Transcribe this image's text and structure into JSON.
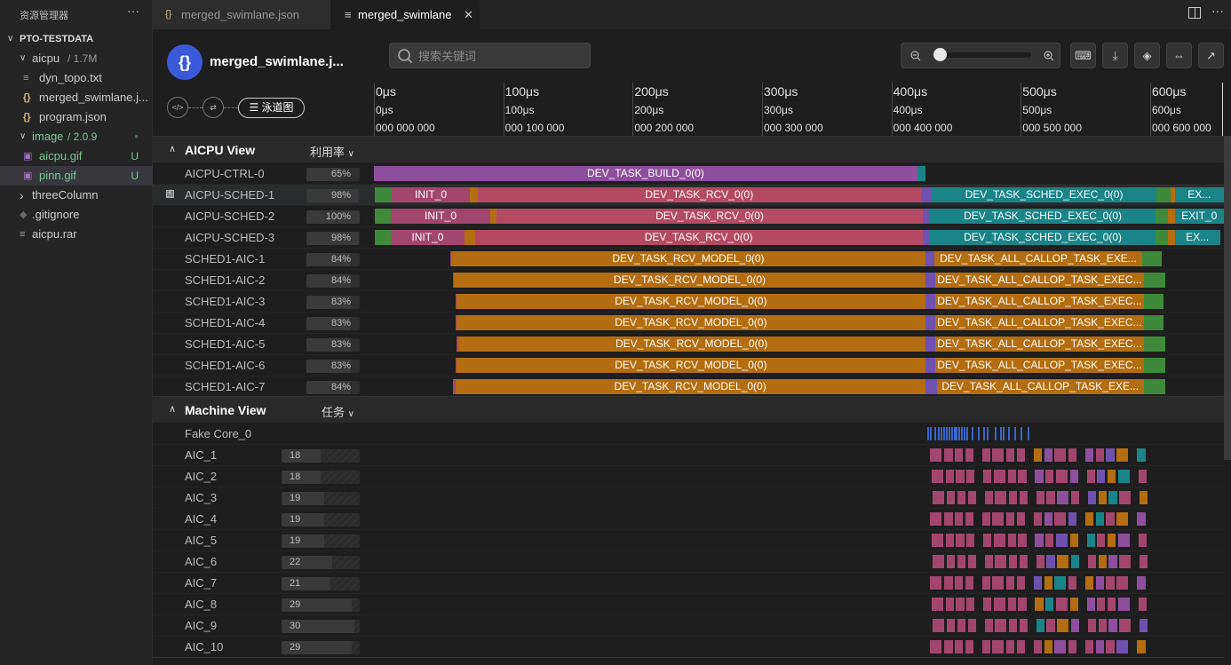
{
  "sidebar": {
    "title": "资源管理器",
    "more": "···",
    "root": "PTO-TESTDATA",
    "items": [
      {
        "label": "aicpu",
        "sub": "1.7M",
        "indent": 1,
        "chev": "v",
        "icon": "folder-icon"
      },
      {
        "label": "dyn_topo.txt",
        "indent": 2,
        "icon": "text-file-icon"
      },
      {
        "label": "merged_swimlane.j...",
        "indent": 2,
        "icon": "json-file-icon",
        "glyph": "{}"
      },
      {
        "label": "program.json",
        "indent": 2,
        "icon": "json-file-icon",
        "glyph": "{}"
      },
      {
        "label": "image",
        "sub": "2.0.9",
        "indent": 1,
        "chev": "v",
        "icon": "folder-icon",
        "color": "#73c991",
        "dot": true
      },
      {
        "label": "aicpu.gif",
        "indent": 2,
        "icon": "image-file-icon",
        "color": "#73c991",
        "badge": "U"
      },
      {
        "label": "pinn.gif",
        "indent": 2,
        "icon": "image-file-icon",
        "color": "#73c991",
        "badge": "U",
        "selected": true
      },
      {
        "label": "threeColumn",
        "indent": 1,
        "chev": ">",
        "icon": "folder-icon"
      },
      {
        "label": ".gitignore",
        "indent": 1,
        "icon": "git-file-icon"
      },
      {
        "label": "aicpu.rar",
        "indent": 1,
        "icon": "archive-file-icon"
      }
    ]
  },
  "tabs": [
    {
      "label": "merged_swimlane.json",
      "glyph": "{}"
    },
    {
      "label": "merged_swimlane",
      "glyph": "≡",
      "close": "✕"
    }
  ],
  "header": {
    "logo": "{}",
    "file_name": "merged_swimlane.j...",
    "search_placeholder": "搜索关键词",
    "zoom_level": 0.0,
    "swimlane_button": "泳道图"
  },
  "ruler": {
    "ticks": [
      {
        "t": 0,
        "a": "0μs",
        "b": "0μs",
        "c": "000 000 000"
      },
      {
        "t": 100,
        "a": "100μs",
        "b": "100μs",
        "c": "000 100 000"
      },
      {
        "t": 200,
        "a": "200μs",
        "b": "200μs",
        "c": "000 200 000"
      },
      {
        "t": 300,
        "a": "300μs",
        "b": "300μs",
        "c": "000 300 000"
      },
      {
        "t": 400,
        "a": "400μs",
        "b": "400μs",
        "c": "000 400 000"
      },
      {
        "t": 500,
        "a": "500μs",
        "b": "500μs",
        "c": "000 500 000"
      },
      {
        "t": 600,
        "a": "600μs",
        "b": "600μs",
        "c": "000 600 000"
      }
    ],
    "max_us": 657
  },
  "colors": {
    "purple": "#8e4f9e",
    "teal": "#1a8488",
    "green": "#3e8a3a",
    "pink": "#a3466e",
    "rose": "#b44a63",
    "orange": "#b46d10",
    "violet": "#6f52b0",
    "blue": "#3a66c9"
  },
  "aicpu_view": {
    "title": "AICPU View",
    "dropdown": "利用率",
    "lanes": [
      {
        "name": "AICPU-CTRL-0",
        "util": "65%",
        "u": 0.65,
        "bars": [
          [
            0,
            420,
            "purple",
            "DEV_TASK_BUILD_0(0)"
          ],
          [
            420,
            426,
            "teal",
            ""
          ]
        ]
      },
      {
        "name": "AICPU-SCHED-1",
        "util": "98%",
        "u": 0.98,
        "highlight": true,
        "bars": [
          [
            1,
            14,
            "green",
            ""
          ],
          [
            14,
            74,
            "pink",
            "INIT_0"
          ],
          [
            74,
            80,
            "orange",
            ""
          ],
          [
            80,
            423,
            "rose",
            "DEV_TASK_RCV_0(0)"
          ],
          [
            423,
            431,
            "violet",
            ""
          ],
          [
            431,
            605,
            "teal",
            "DEV_TASK_SCHED_EXEC_0(0)"
          ],
          [
            605,
            616,
            "green",
            ""
          ],
          [
            616,
            619,
            "orange",
            ""
          ],
          [
            619,
            657,
            "teal",
            "EX..."
          ]
        ]
      },
      {
        "name": "AICPU-SCHED-2",
        "util": "100%",
        "u": 1.0,
        "bars": [
          [
            1,
            13,
            "green",
            ""
          ],
          [
            13,
            90,
            "pink",
            "INIT_0"
          ],
          [
            90,
            95,
            "orange",
            ""
          ],
          [
            95,
            424,
            "rose",
            "DEV_TASK_RCV_0(0)"
          ],
          [
            424,
            430,
            "violet",
            ""
          ],
          [
            430,
            604,
            "teal",
            "DEV_TASK_SCHED_EXEC_0(0)"
          ],
          [
            604,
            614,
            "green",
            ""
          ],
          [
            614,
            619,
            "orange",
            ""
          ],
          [
            619,
            657,
            "teal",
            "EXIT_0"
          ]
        ]
      },
      {
        "name": "AICPU-SCHED-3",
        "util": "98%",
        "u": 0.98,
        "bars": [
          [
            1,
            13,
            "green",
            ""
          ],
          [
            13,
            70,
            "pink",
            "INIT_0"
          ],
          [
            70,
            78,
            "orange",
            ""
          ],
          [
            78,
            424,
            "rose",
            "DEV_TASK_RCV_0(0)"
          ],
          [
            424,
            430,
            "violet",
            ""
          ],
          [
            430,
            604,
            "teal",
            "DEV_TASK_SCHED_EXEC_0(0)"
          ],
          [
            604,
            614,
            "green",
            ""
          ],
          [
            614,
            619,
            "orange",
            ""
          ],
          [
            619,
            654,
            "teal",
            "EX..."
          ]
        ]
      },
      {
        "name": "SCHED1-AIC-1",
        "util": "84%",
        "u": 0.84,
        "bars": [
          [
            59,
            60,
            "pink",
            ""
          ],
          [
            60,
            426,
            "orange",
            "DEV_TASK_RCV_MODEL_0(0)"
          ],
          [
            426,
            433,
            "violet",
            ""
          ],
          [
            433,
            594,
            "orange",
            "DEV_TASK_ALL_CALLOP_TASK_EXE..."
          ],
          [
            594,
            609,
            "green",
            ""
          ]
        ]
      },
      {
        "name": "SCHED1-AIC-2",
        "util": "84%",
        "u": 0.84,
        "bars": [
          [
            61,
            62,
            "pink",
            ""
          ],
          [
            62,
            426,
            "orange",
            "DEV_TASK_RCV_MODEL_0(0)"
          ],
          [
            426,
            434,
            "violet",
            ""
          ],
          [
            434,
            595,
            "orange",
            "DEV_TASK_ALL_CALLOP_TASK_EXEC..."
          ],
          [
            595,
            612,
            "green",
            ""
          ]
        ]
      },
      {
        "name": "SCHED1-AIC-3",
        "util": "83%",
        "u": 0.83,
        "bars": [
          [
            63,
            64,
            "pink",
            ""
          ],
          [
            64,
            426,
            "orange",
            "DEV_TASK_RCV_MODEL_0(0)"
          ],
          [
            426,
            434,
            "violet",
            ""
          ],
          [
            434,
            595,
            "orange",
            "DEV_TASK_ALL_CALLOP_TASK_EXEC..."
          ],
          [
            595,
            610,
            "green",
            ""
          ]
        ]
      },
      {
        "name": "SCHED1-AIC-4",
        "util": "83%",
        "u": 0.83,
        "bars": [
          [
            63,
            64,
            "pink",
            ""
          ],
          [
            64,
            426,
            "orange",
            "DEV_TASK_RCV_MODEL_0(0)"
          ],
          [
            426,
            434,
            "violet",
            ""
          ],
          [
            434,
            595,
            "orange",
            "DEV_TASK_ALL_CALLOP_TASK_EXEC..."
          ],
          [
            595,
            610,
            "green",
            ""
          ]
        ]
      },
      {
        "name": "SCHED1-AIC-5",
        "util": "83%",
        "u": 0.83,
        "bars": [
          [
            64,
            65,
            "pink",
            ""
          ],
          [
            65,
            426,
            "orange",
            "DEV_TASK_RCV_MODEL_0(0)"
          ],
          [
            426,
            434,
            "violet",
            ""
          ],
          [
            434,
            595,
            "orange",
            "DEV_TASK_ALL_CALLOP_TASK_EXEC..."
          ],
          [
            595,
            612,
            "green",
            ""
          ]
        ]
      },
      {
        "name": "SCHED1-AIC-6",
        "util": "83%",
        "u": 0.83,
        "bars": [
          [
            63,
            64,
            "pink",
            ""
          ],
          [
            64,
            426,
            "orange",
            "DEV_TASK_RCV_MODEL_0(0)"
          ],
          [
            426,
            434,
            "violet",
            ""
          ],
          [
            434,
            595,
            "orange",
            "DEV_TASK_ALL_CALLOP_TASK_EXEC..."
          ],
          [
            595,
            612,
            "green",
            ""
          ]
        ]
      },
      {
        "name": "SCHED1-AIC-7",
        "util": "84%",
        "u": 0.84,
        "bars": [
          [
            61,
            63,
            "pink",
            ""
          ],
          [
            63,
            426,
            "orange",
            "DEV_TASK_RCV_MODEL_0(0)"
          ],
          [
            426,
            435,
            "violet",
            ""
          ],
          [
            435,
            595,
            "orange",
            "DEV_TASK_ALL_CALLOP_TASK_EXE..."
          ],
          [
            595,
            612,
            "green",
            ""
          ]
        ]
      }
    ]
  },
  "machine_view": {
    "title": "Machine View",
    "dropdown": "任务",
    "fake_core": {
      "name": "Fake Core_0",
      "marks": [
        428,
        430,
        433,
        436,
        438,
        440,
        442,
        444,
        446,
        448,
        450,
        452,
        454,
        456,
        458,
        462,
        467,
        471,
        474,
        480,
        484,
        486,
        490,
        495,
        500,
        505
      ]
    },
    "lanes": [
      {
        "name": "AIC_1",
        "count": "18",
        "c": 0.5
      },
      {
        "name": "AIC_2",
        "count": "18",
        "c": 0.5
      },
      {
        "name": "AIC_3",
        "count": "19",
        "c": 0.55
      },
      {
        "name": "AIC_4",
        "count": "19",
        "c": 0.55
      },
      {
        "name": "AIC_5",
        "count": "19",
        "c": 0.55
      },
      {
        "name": "AIC_6",
        "count": "22",
        "c": 0.65
      },
      {
        "name": "AIC_7",
        "count": "21",
        "c": 0.62
      },
      {
        "name": "AIC_8",
        "count": "29",
        "c": 0.9
      },
      {
        "name": "AIC_9",
        "count": "30",
        "c": 0.93
      },
      {
        "name": "AIC_10",
        "count": "29",
        "c": 0.9
      }
    ]
  }
}
